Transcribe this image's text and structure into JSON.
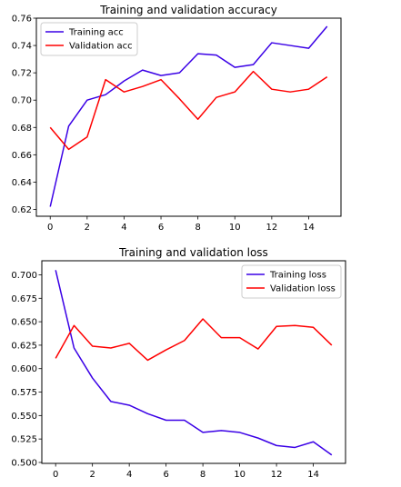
{
  "chart_data": [
    {
      "type": "line",
      "title": "Training and validation accuracy",
      "xlabel": "",
      "ylabel": "",
      "xlim": [
        -0.75,
        15.75
      ],
      "ylim": [
        0.615,
        0.76
      ],
      "xticks": [
        0,
        2,
        4,
        6,
        8,
        10,
        12,
        14
      ],
      "xtick_labels": [
        "0",
        "2",
        "4",
        "6",
        "8",
        "10",
        "12",
        "14"
      ],
      "yticks": [
        0.62,
        0.64,
        0.66,
        0.68,
        0.7,
        0.72,
        0.74,
        0.76
      ],
      "ytick_labels": [
        "0.62",
        "0.64",
        "0.66",
        "0.68",
        "0.70",
        "0.72",
        "0.74",
        "0.76"
      ],
      "grid": false,
      "legend_position": "upper-left",
      "x": [
        0,
        1,
        2,
        3,
        4,
        5,
        6,
        7,
        8,
        9,
        10,
        11,
        12,
        13,
        14,
        15
      ],
      "series": [
        {
          "name": "Training acc",
          "color": "#3a00e6",
          "values": [
            0.622,
            0.681,
            0.7,
            0.704,
            0.714,
            0.722,
            0.718,
            0.72,
            0.734,
            0.733,
            0.724,
            0.726,
            0.742,
            0.74,
            0.738,
            0.754
          ]
        },
        {
          "name": "Validation acc",
          "color": "#ff0000",
          "values": [
            0.68,
            0.664,
            0.673,
            0.715,
            0.706,
            0.71,
            0.715,
            0.701,
            0.686,
            0.702,
            0.706,
            0.721,
            0.708,
            0.706,
            0.708,
            0.717
          ]
        }
      ]
    },
    {
      "type": "line",
      "title": "Training and validation loss",
      "xlabel": "",
      "ylabel": "",
      "xlim": [
        -0.75,
        15.75
      ],
      "ylim": [
        0.499,
        0.715
      ],
      "xticks": [
        0,
        2,
        4,
        6,
        8,
        10,
        12,
        14
      ],
      "xtick_labels": [
        "0",
        "2",
        "4",
        "6",
        "8",
        "10",
        "12",
        "14"
      ],
      "yticks": [
        0.5,
        0.525,
        0.55,
        0.575,
        0.6,
        0.625,
        0.65,
        0.675,
        0.7
      ],
      "ytick_labels": [
        "0.500",
        "0.525",
        "0.550",
        "0.575",
        "0.600",
        "0.625",
        "0.650",
        "0.675",
        "0.700"
      ],
      "grid": false,
      "legend_position": "upper-right",
      "x": [
        0,
        1,
        2,
        3,
        4,
        5,
        6,
        7,
        8,
        9,
        10,
        11,
        12,
        13,
        14,
        15
      ],
      "series": [
        {
          "name": "Training loss",
          "color": "#3a00e6",
          "values": [
            0.705,
            0.622,
            0.59,
            0.565,
            0.561,
            0.552,
            0.545,
            0.545,
            0.532,
            0.534,
            0.532,
            0.526,
            0.518,
            0.516,
            0.522,
            0.508
          ]
        },
        {
          "name": "Validation loss",
          "color": "#ff0000",
          "values": [
            0.611,
            0.646,
            0.624,
            0.622,
            0.627,
            0.609,
            0.62,
            0.63,
            0.653,
            0.633,
            0.633,
            0.621,
            0.645,
            0.646,
            0.644,
            0.625
          ]
        }
      ]
    }
  ]
}
